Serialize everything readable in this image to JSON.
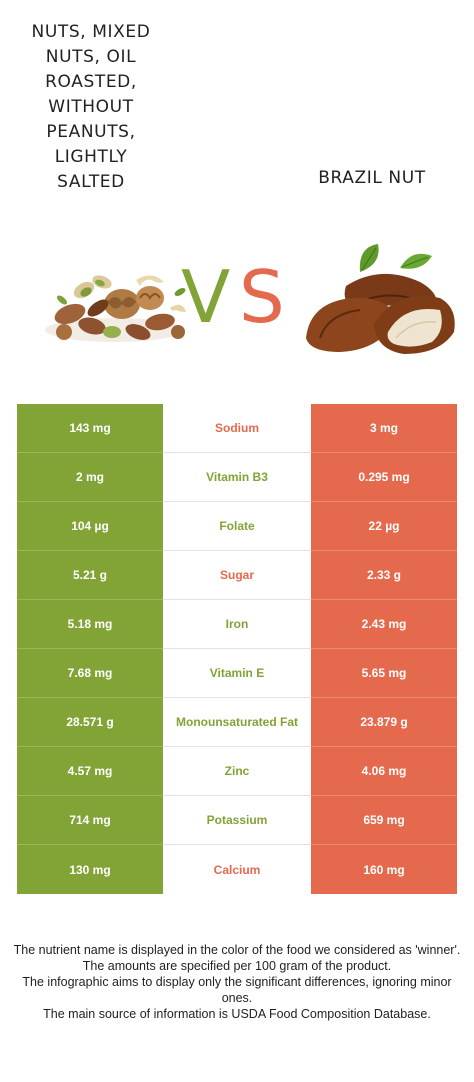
{
  "foods": {
    "left": {
      "name": "Nuts, mixed nuts, oil roasted, without peanuts, lightly salted",
      "color": "#82a336"
    },
    "right": {
      "name": "Brazil nut",
      "color": "#e56a4d"
    }
  },
  "vs": {
    "v": "V",
    "s": "S"
  },
  "rows": [
    {
      "left": "143 mg",
      "nutrient": "Sodium",
      "right": "3 mg",
      "winner": "right"
    },
    {
      "left": "2 mg",
      "nutrient": "Vitamin B3",
      "right": "0.295 mg",
      "winner": "left"
    },
    {
      "left": "104 µg",
      "nutrient": "Folate",
      "right": "22 µg",
      "winner": "left"
    },
    {
      "left": "5.21 g",
      "nutrient": "Sugar",
      "right": "2.33 g",
      "winner": "right"
    },
    {
      "left": "5.18 mg",
      "nutrient": "Iron",
      "right": "2.43 mg",
      "winner": "left"
    },
    {
      "left": "7.68 mg",
      "nutrient": "Vitamin E",
      "right": "5.65 mg",
      "winner": "left"
    },
    {
      "left": "28.571 g",
      "nutrient": "Monounsaturated Fat",
      "right": "23.879 g",
      "winner": "left"
    },
    {
      "left": "4.57 mg",
      "nutrient": "Zinc",
      "right": "4.06 mg",
      "winner": "left"
    },
    {
      "left": "714 mg",
      "nutrient": "Potassium",
      "right": "659 mg",
      "winner": "left"
    },
    {
      "left": "130 mg",
      "nutrient": "Calcium",
      "right": "160 mg",
      "winner": "right"
    }
  ],
  "footnote": [
    "The nutrient name is displayed in the color of the food we considered as 'winner'.",
    "The amounts are specified per 100 gram of the product.",
    "The infographic aims to display only the significant differences, ignoring minor ones.",
    "The main source of information is USDA Food Composition Database."
  ]
}
